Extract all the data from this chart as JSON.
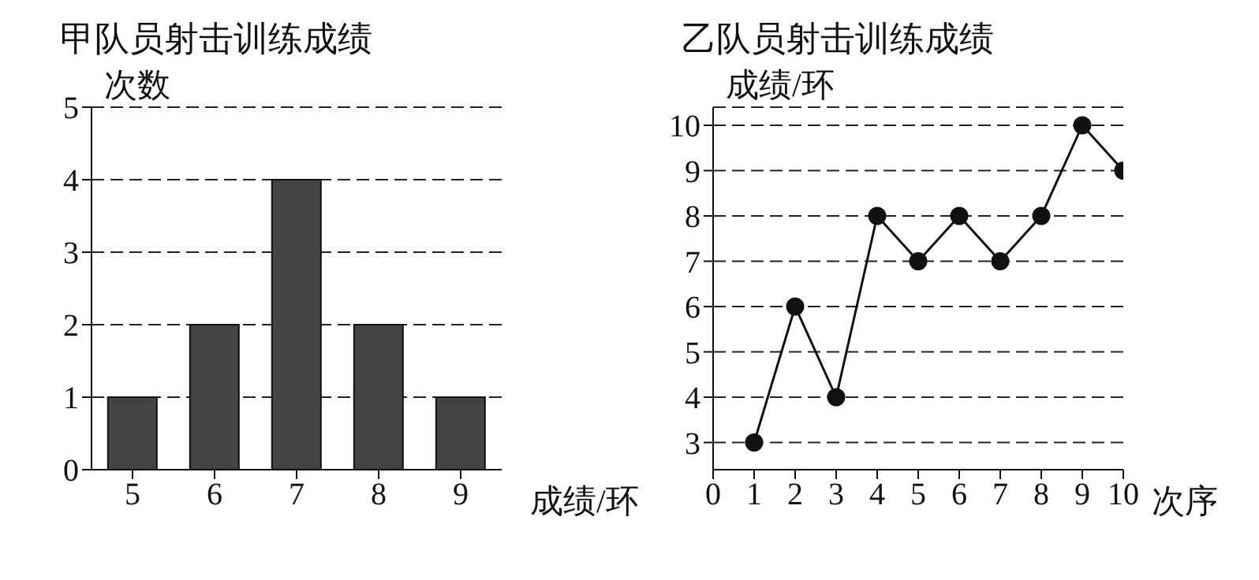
{
  "chart_data": [
    {
      "type": "bar",
      "title": "甲队员射击训练成绩",
      "xlabel": "成绩/环",
      "ylabel": "次数",
      "categories": [
        "5",
        "6",
        "7",
        "8",
        "9"
      ],
      "values": [
        1,
        2,
        4,
        2,
        1
      ],
      "color": "#444444",
      "ylim": [
        0,
        5
      ],
      "yticks": [
        0,
        1,
        2,
        3,
        4,
        5
      ],
      "grid": "y"
    },
    {
      "type": "line",
      "title": "乙队员射击训练成绩",
      "xlabel": "次序",
      "ylabel": "成绩/环",
      "x": [
        1,
        2,
        3,
        4,
        5,
        6,
        7,
        8,
        9,
        10
      ],
      "values": [
        3,
        6,
        4,
        8,
        7,
        8,
        7,
        8,
        10,
        9
      ],
      "color": "#111111",
      "xlim": [
        0,
        10
      ],
      "xticks": [
        0,
        1,
        2,
        3,
        4,
        5,
        6,
        7,
        8,
        9,
        10
      ],
      "ylim": [
        2.4,
        10.4
      ],
      "yticks": [
        3,
        4,
        5,
        6,
        7,
        8,
        9,
        10
      ],
      "grid": "y",
      "marker": "circle",
      "line_style": "solid"
    }
  ]
}
